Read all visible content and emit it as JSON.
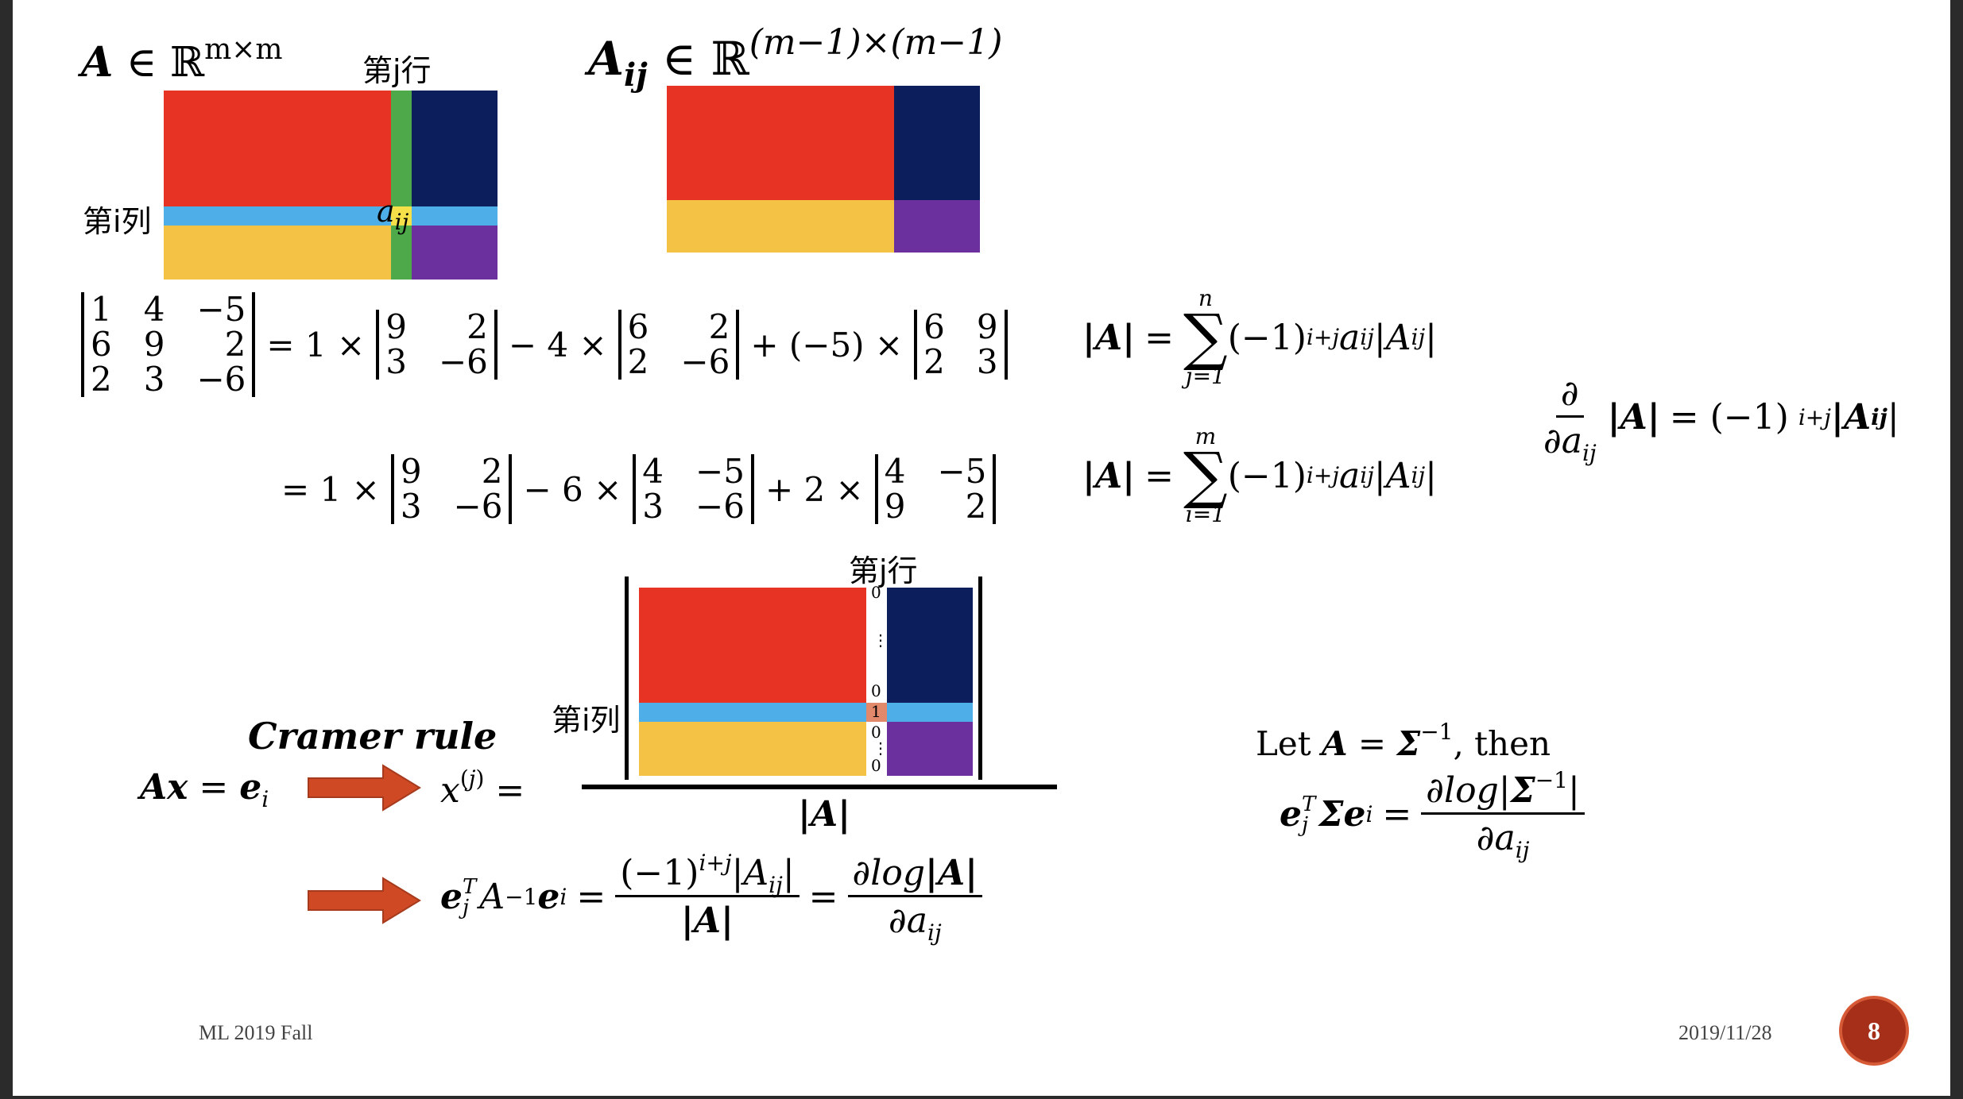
{
  "slide": {
    "footer_left": "ML 2019 Fall",
    "footer_right": "2019/11/28",
    "page_number": "8"
  },
  "labels": {
    "A_in": "A",
    "R_mm_sup": "m×m",
    "Aij": "A",
    "Aij_sub": "ij",
    "R_sup2": "(m−1)×(m−1)",
    "row_j": "第j行",
    "col_i": "第i列",
    "aij": "a",
    "aij_sub": "ij",
    "row_j2": "第j行",
    "col_i2": "第i列",
    "cramer": "Cramer rule",
    "let": "Let",
    "then": ", then",
    "detA": "|A|"
  },
  "det_example": {
    "matrix": [
      [
        "1",
        "4",
        "−5"
      ],
      [
        "6",
        "9",
        "2"
      ],
      [
        "2",
        "3",
        "−6"
      ]
    ],
    "line1": {
      "c1": "= 1 ×",
      "m1": [
        [
          "9",
          "2"
        ],
        [
          "3",
          "−6"
        ]
      ],
      "c2": "− 4 ×",
      "m2": [
        [
          "6",
          "2"
        ],
        [
          "2",
          "−6"
        ]
      ],
      "c3": "+ (−5) ×",
      "m3": [
        [
          "6",
          "9"
        ],
        [
          "2",
          "3"
        ]
      ]
    },
    "line2": {
      "c1": "= 1 ×",
      "m1": [
        [
          "9",
          "2"
        ],
        [
          "3",
          "−6"
        ]
      ],
      "c2": "− 6 ×",
      "m2": [
        [
          "4",
          "−5"
        ],
        [
          "3",
          "−6"
        ]
      ],
      "c3": "+ 2 ×",
      "m3": [
        [
          "4",
          "−5"
        ],
        [
          "9",
          "2"
        ]
      ]
    }
  },
  "sums": {
    "sum1_top": "n",
    "sum1_bot": "j=1",
    "sum2_top": "m",
    "sum2_bot": "i=1",
    "term": "(−1)"
  },
  "zero_column": [
    "0",
    "⋮",
    "0",
    "1",
    "0",
    "⋮",
    "0"
  ],
  "colors": {
    "red": "#e63323",
    "navy": "#0c1f5c",
    "green": "#4ea94b",
    "lightblue": "#4daee8",
    "yellow": "#f4c244",
    "purple": "#6c2f9e",
    "arrow": "#cf4a24",
    "salmon": "#e3896b",
    "badge": "#a52f19"
  }
}
